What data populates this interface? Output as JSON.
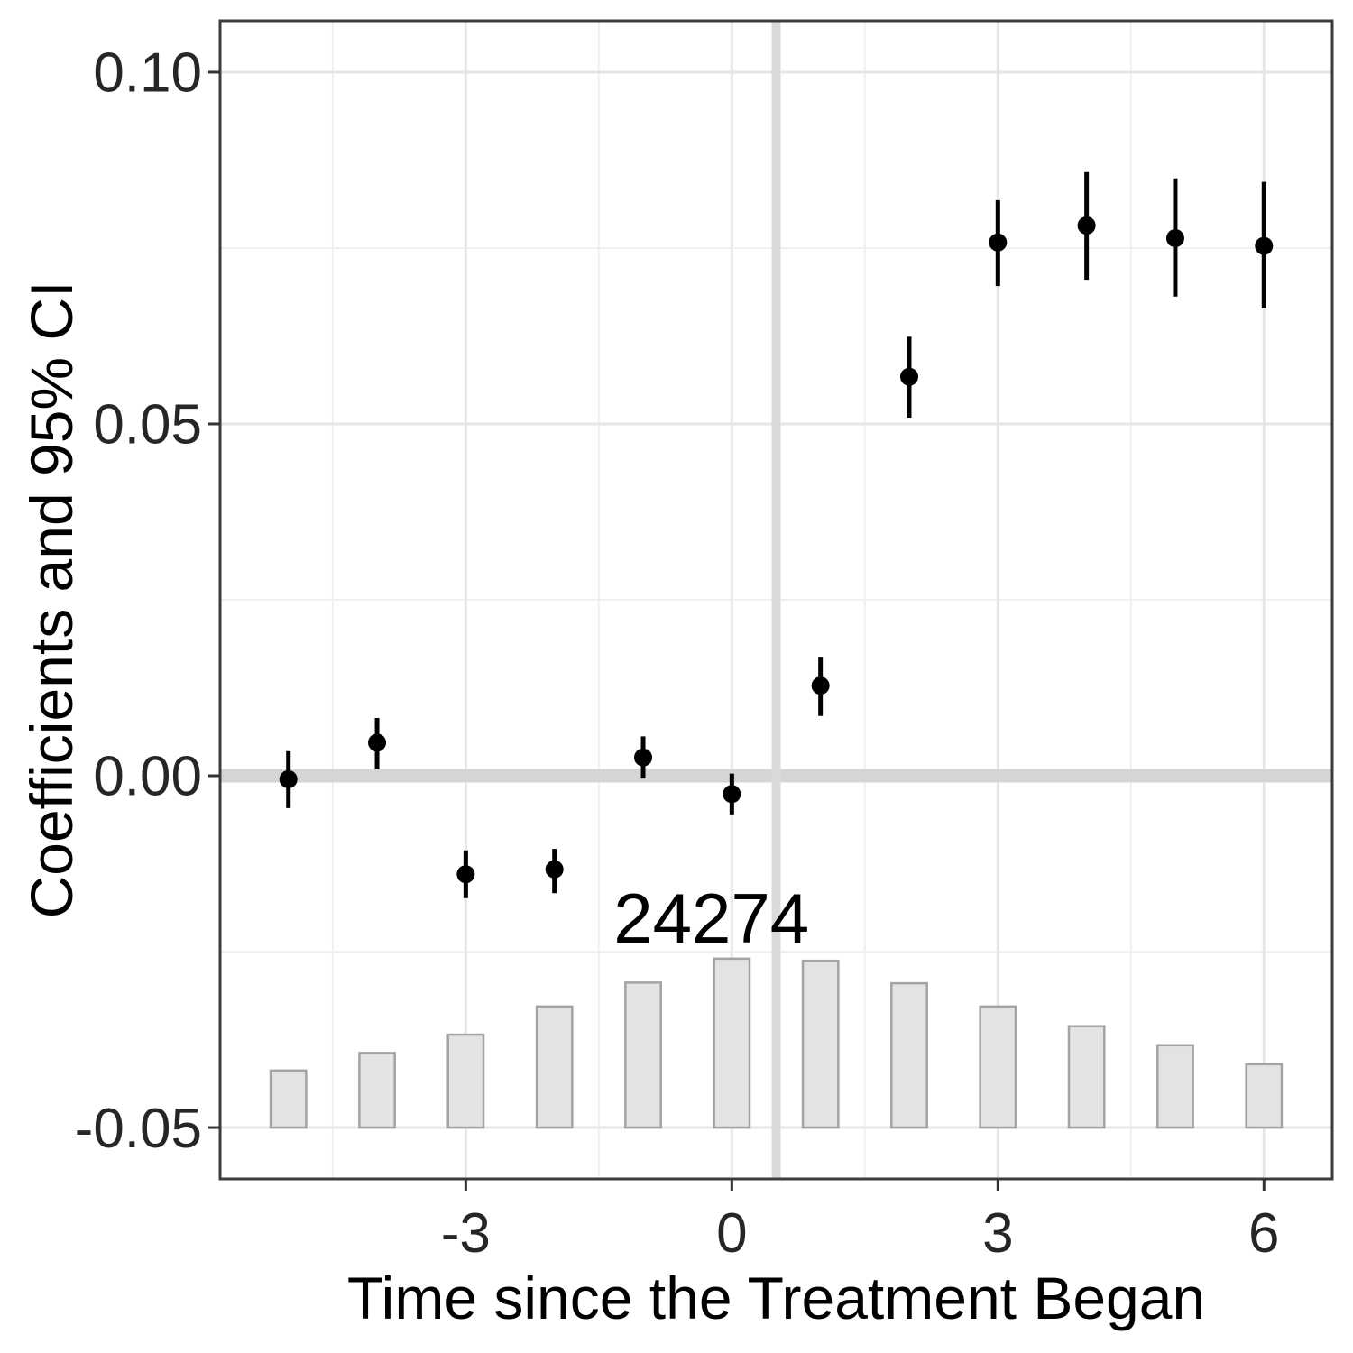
{
  "chart_data": {
    "type": "pointrange+bar",
    "title": "",
    "xlabel": "Time since the Treatment Began",
    "ylabel": "Coefficients and 95% CI",
    "x_axis": {
      "range": [
        -5.77,
        6.77
      ],
      "ticks": [
        {
          "value": -3,
          "label": "-3"
        },
        {
          "value": 0,
          "label": "0"
        },
        {
          "value": 3,
          "label": "3"
        },
        {
          "value": 6,
          "label": "6"
        }
      ],
      "minor": [
        -4.5,
        -1.5,
        1.5,
        4.5
      ]
    },
    "y_axis": {
      "range": [
        -0.0573,
        0.1073
      ],
      "ticks": [
        {
          "value": 0.1,
          "label": "0.10"
        },
        {
          "value": 0.05,
          "label": "0.05"
        },
        {
          "value": 0.0,
          "label": "0.00"
        },
        {
          "value": -0.05,
          "label": "-0.05"
        }
      ],
      "minor": [
        0.075,
        0.025,
        -0.025
      ]
    },
    "reference": {
      "hline_y": 0,
      "vline_x": 0.5
    },
    "pointrange": [
      {
        "x": -5,
        "est": -0.0005,
        "lo": -0.0046,
        "hi": 0.0035
      },
      {
        "x": -4,
        "est": 0.0047,
        "lo": 0.0009,
        "hi": 0.0082
      },
      {
        "x": -3,
        "est": -0.014,
        "lo": -0.0174,
        "hi": -0.0106
      },
      {
        "x": -2,
        "est": -0.0133,
        "lo": -0.0167,
        "hi": -0.0104
      },
      {
        "x": -1,
        "est": 0.0026,
        "lo": -0.0004,
        "hi": 0.0056
      },
      {
        "x": 0,
        "est": -0.0026,
        "lo": -0.0055,
        "hi": 0.0003
      },
      {
        "x": 1,
        "est": 0.0128,
        "lo": 0.0085,
        "hi": 0.0169
      },
      {
        "x": 2,
        "est": 0.0567,
        "lo": 0.0509,
        "hi": 0.0624
      },
      {
        "x": 3,
        "est": 0.0758,
        "lo": 0.0696,
        "hi": 0.0818
      },
      {
        "x": 4,
        "est": 0.0782,
        "lo": 0.0705,
        "hi": 0.0858
      },
      {
        "x": 5,
        "est": 0.0764,
        "lo": 0.0681,
        "hi": 0.0849
      },
      {
        "x": 6,
        "est": 0.0753,
        "lo": 0.0664,
        "hi": 0.0844
      }
    ],
    "bars": {
      "width": 0.4,
      "base": -0.05,
      "values": [
        {
          "x": -5,
          "top": -0.0419
        },
        {
          "x": -4,
          "top": -0.0394
        },
        {
          "x": -3,
          "top": -0.0368
        },
        {
          "x": -2,
          "top": -0.0328
        },
        {
          "x": -1,
          "top": -0.0294
        },
        {
          "x": 0,
          "top": -0.026
        },
        {
          "x": 1,
          "top": -0.0263
        },
        {
          "x": 2,
          "top": -0.0295
        },
        {
          "x": 3,
          "top": -0.0328
        },
        {
          "x": 4,
          "top": -0.0356
        },
        {
          "x": 5,
          "top": -0.0383
        },
        {
          "x": 6,
          "top": -0.041
        }
      ]
    },
    "annotation": {
      "text": "24274",
      "x": -0.23,
      "y": -0.0237
    },
    "legend": "none",
    "grid": "on"
  },
  "colors": {
    "point": "#000000",
    "bar_fill": "#e3e3e3",
    "bar_stroke": "#a3a3a3",
    "grid_major": "#e6e6e6",
    "grid_minor": "#f0f0f0",
    "hline": "#d5d5d5",
    "vline": "#dadada",
    "panel_border": "#3c3c3c",
    "tick_mark": "#333333",
    "background": "#ffffff"
  }
}
